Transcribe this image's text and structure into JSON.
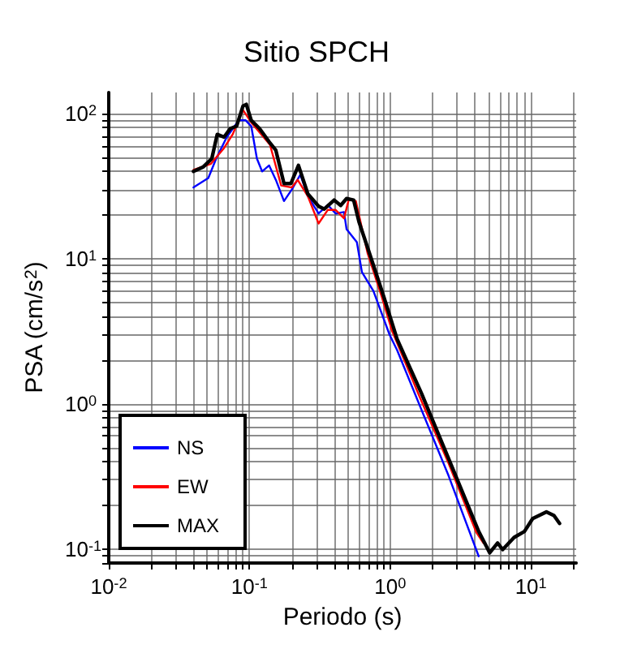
{
  "chart_data": {
    "type": "line",
    "title": "Sitio SPCH",
    "xlabel": "Periodo (s)",
    "ylabel": "PSA (cm/s$^{2}$)",
    "log": "xy",
    "grid": true,
    "legend": "bottom left",
    "marker": "none",
    "line_style": "solid",
    "xlim": [
      0.01,
      21
    ],
    "ylim": [
      0.08,
      140
    ],
    "xticks": [
      {
        "value": 0.01,
        "label": "10$^{-2}$"
      },
      {
        "value": 0.1,
        "label": "10$^{-1}$"
      },
      {
        "value": 1,
        "label": "10$^{0}$"
      },
      {
        "value": 10,
        "label": "10$^{1}$"
      }
    ],
    "yticks": [
      {
        "value": 0.1,
        "label": "10$^{-1}$"
      },
      {
        "value": 1,
        "label": "10$^{0}$"
      },
      {
        "value": 10,
        "label": "10$^{1}$"
      },
      {
        "value": 100,
        "label": "10$^{2}$"
      }
    ],
    "series": [
      {
        "name": "NS",
        "color": "#0000ff",
        "x": [
          0.04,
          0.051,
          0.058,
          0.069,
          0.084,
          0.094,
          0.103,
          0.113,
          0.123,
          0.138,
          0.154,
          0.176,
          0.2,
          0.23,
          0.26,
          0.31,
          0.36,
          0.41,
          0.47,
          0.49,
          0.58,
          0.63,
          0.76,
          0.99,
          1.12,
          1.67,
          2.6,
          4.26
        ],
        "values": [
          31,
          36,
          49,
          69,
          90,
          90,
          82,
          49,
          40,
          44,
          35,
          25,
          30,
          38,
          27,
          20.5,
          23.5,
          20.5,
          21,
          16,
          13,
          8.1,
          6.0,
          3.0,
          2.35,
          0.91,
          0.32,
          0.089
        ]
      },
      {
        "name": "EW",
        "color": "#ff0000",
        "x": [
          0.04,
          0.053,
          0.066,
          0.076,
          0.09,
          0.103,
          0.14,
          0.168,
          0.2,
          0.22,
          0.26,
          0.31,
          0.36,
          0.41,
          0.47,
          0.51,
          0.57,
          0.69,
          0.87,
          1.03,
          1.6,
          2.6,
          4.1,
          4.6
        ],
        "values": [
          41,
          45,
          58,
          72,
          106,
          87,
          61,
          32,
          31,
          35,
          27,
          17.5,
          21.7,
          21.7,
          19,
          26,
          25,
          11,
          5.5,
          3.2,
          1.15,
          0.39,
          0.13,
          0.11
        ]
      },
      {
        "name": "MAX",
        "color": "#000000",
        "x": [
          0.04,
          0.047,
          0.054,
          0.059,
          0.066,
          0.073,
          0.081,
          0.09,
          0.095,
          0.103,
          0.118,
          0.138,
          0.154,
          0.176,
          0.197,
          0.223,
          0.26,
          0.31,
          0.34,
          0.4,
          0.445,
          0.49,
          0.55,
          0.6,
          0.69,
          0.9,
          1.12,
          1.67,
          2.6,
          4.26,
          5.1,
          5.8,
          6.3,
          7.6,
          9.0,
          10.3,
          12.9,
          14.6,
          16
        ],
        "values": [
          40,
          43,
          49,
          72,
          69,
          79,
          82,
          113,
          116,
          90,
          79,
          64,
          56,
          33,
          33,
          44,
          28,
          23,
          22,
          25.4,
          23.3,
          26,
          25.4,
          18,
          12,
          5.5,
          2.8,
          1.18,
          0.42,
          0.132,
          0.094,
          0.11,
          0.099,
          0.12,
          0.132,
          0.162,
          0.18,
          0.17,
          0.15
        ]
      }
    ]
  }
}
